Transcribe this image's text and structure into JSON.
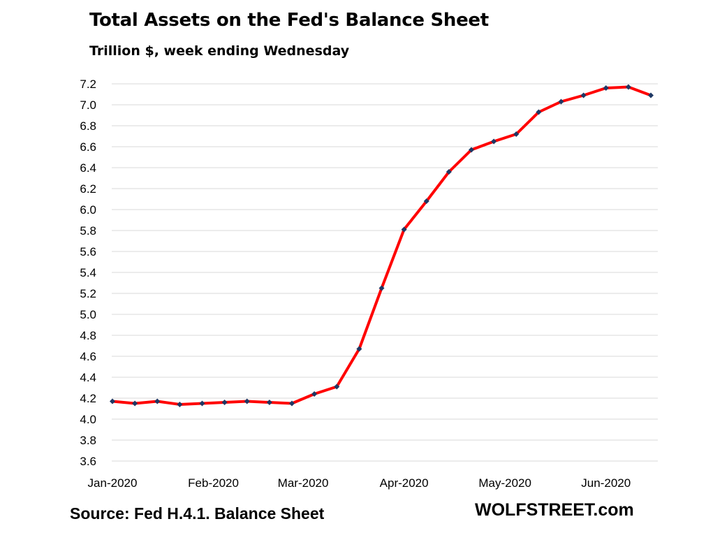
{
  "chart_data": {
    "type": "line",
    "title": "Total Assets on the Fed's Balance Sheet",
    "subtitle": "Trillion $, week ending Wednesday",
    "xlabel": "",
    "ylabel": "",
    "ylim": [
      3.6,
      7.2
    ],
    "y_ticks": [
      "3.6",
      "3.8",
      "4.0",
      "4.2",
      "4.4",
      "4.6",
      "4.8",
      "5.0",
      "5.2",
      "5.4",
      "5.6",
      "5.8",
      "6.0",
      "6.2",
      "6.4",
      "6.6",
      "6.8",
      "7.0",
      "7.2"
    ],
    "x_tick_labels": [
      {
        "label": "Jan-2020",
        "week_index": 0
      },
      {
        "label": "Feb-2020",
        "week_index": 4.5
      },
      {
        "label": "Mar-2020",
        "week_index": 8.5
      },
      {
        "label": "Apr-2020",
        "week_index": 13
      },
      {
        "label": "May-2020",
        "week_index": 17.5
      },
      {
        "label": "Jun-2020",
        "week_index": 22
      }
    ],
    "grid": true,
    "series": [
      {
        "name": "",
        "color": "#ff0000",
        "marker_color": "#1f3864",
        "values": [
          4.17,
          4.15,
          4.17,
          4.14,
          4.15,
          4.16,
          4.17,
          4.16,
          4.15,
          4.24,
          4.31,
          4.67,
          5.25,
          5.81,
          6.08,
          6.36,
          6.57,
          6.65,
          6.72,
          6.93,
          7.03,
          7.09,
          7.16,
          7.17,
          7.09
        ]
      }
    ],
    "source": "Source: Fed H.4.1. Balance Sheet",
    "brand": "WOLFSTREET.com"
  }
}
